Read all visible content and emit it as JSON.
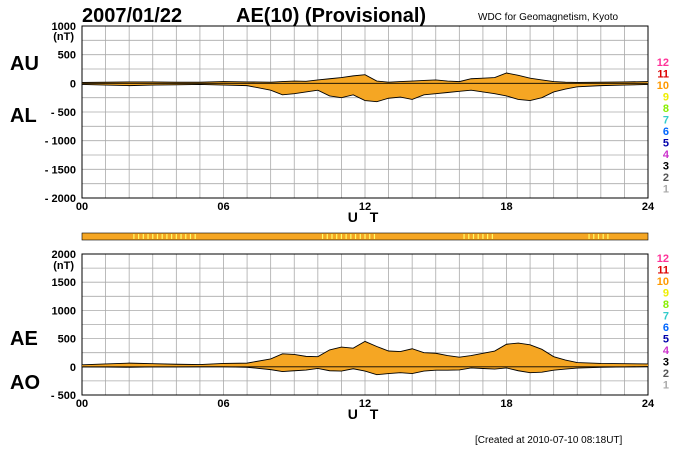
{
  "header": {
    "date": "2007/01/22",
    "title": "AE(10) (Provisional)",
    "institution": "WDC for Geomagnetism, Kyoto"
  },
  "footer": {
    "created": "[Created at 2010-07-10 08:18UT]"
  },
  "colors": {
    "fill": "#f5a623",
    "grid": "#aaaaaa",
    "highlight": "#ffff66"
  },
  "station_legend": [
    {
      "label": "12",
      "color": "#ff3399"
    },
    {
      "label": "11",
      "color": "#dd0000"
    },
    {
      "label": "10",
      "color": "#ff9900"
    },
    {
      "label": "9",
      "color": "#eeee00"
    },
    {
      "label": "8",
      "color": "#88ee00"
    },
    {
      "label": "7",
      "color": "#33cccc"
    },
    {
      "label": "6",
      "color": "#0066ff"
    },
    {
      "label": "5",
      "color": "#0000aa"
    },
    {
      "label": "4",
      "color": "#cc33cc"
    },
    {
      "label": "3",
      "color": "#000000"
    },
    {
      "label": "2",
      "color": "#555555"
    },
    {
      "label": "1",
      "color": "#aaaaaa"
    }
  ],
  "station_bar": {
    "highlight_ranges_ut": [
      [
        2.2,
        5.0
      ],
      [
        10.2,
        12.5
      ],
      [
        16.2,
        17.4
      ],
      [
        21.5,
        22.3
      ]
    ]
  },
  "chart_data": [
    {
      "type": "area",
      "panel": "AU/AL",
      "labels_upper": "AU",
      "labels_lower": "AL",
      "unit": "(nT)",
      "xlabel": "U T",
      "xlim": [
        0,
        24
      ],
      "ylim": [
        -2000,
        1000
      ],
      "y_ticks": [
        1000,
        500,
        0,
        -500,
        -1000,
        -1500,
        -2000
      ],
      "y_tick_labels": [
        "1000",
        "500",
        "0",
        "- 500",
        "- 1000",
        "- 1500",
        "- 2000"
      ],
      "x_ticks": [
        0,
        6,
        12,
        18,
        24
      ],
      "x_tick_labels": [
        "00",
        "06",
        "12",
        "18",
        "24"
      ],
      "grid": true,
      "series": [
        {
          "x": [
            0,
            1,
            2,
            3,
            4,
            5,
            6,
            7,
            8,
            8.5,
            9,
            9.5,
            10,
            10.5,
            11,
            11.5,
            12,
            12.5,
            13,
            13.5,
            14,
            14.5,
            15,
            15.5,
            16,
            16.5,
            17,
            17.5,
            18,
            18.5,
            19,
            19.5,
            20,
            20.5,
            21,
            22,
            23,
            24
          ],
          "values": [
            15,
            20,
            25,
            25,
            20,
            20,
            30,
            25,
            20,
            30,
            40,
            35,
            60,
            80,
            100,
            130,
            150,
            40,
            20,
            30,
            40,
            50,
            60,
            40,
            30,
            80,
            90,
            100,
            180,
            140,
            90,
            60,
            30,
            20,
            15,
            20,
            25,
            30
          ]
        },
        {
          "x": [
            0,
            1,
            2,
            3,
            4,
            5,
            6,
            7,
            8,
            8.5,
            9,
            9.5,
            10,
            10.5,
            11,
            11.5,
            12,
            12.5,
            13,
            13.5,
            14,
            14.5,
            15,
            15.5,
            16,
            16.5,
            17,
            17.5,
            18,
            18.5,
            19,
            19.5,
            20,
            20.5,
            21,
            22,
            23,
            24
          ],
          "values": [
            -20,
            -30,
            -40,
            -30,
            -25,
            -20,
            -30,
            -40,
            -120,
            -200,
            -180,
            -150,
            -120,
            -220,
            -250,
            -200,
            -300,
            -320,
            -260,
            -240,
            -280,
            -200,
            -180,
            -160,
            -140,
            -120,
            -150,
            -180,
            -220,
            -280,
            -300,
            -250,
            -150,
            -100,
            -60,
            -40,
            -30,
            -20
          ]
        }
      ]
    },
    {
      "type": "area",
      "panel": "AE/AO",
      "labels_upper": "AE",
      "labels_lower": "AO",
      "unit": "(nT)",
      "xlabel": "U T",
      "xlim": [
        0,
        24
      ],
      "ylim": [
        -500,
        2000
      ],
      "y_ticks": [
        2000,
        1500,
        1000,
        500,
        0,
        -500
      ],
      "y_tick_labels": [
        "2000",
        "1500",
        "1000",
        "500",
        "0",
        "- 500"
      ],
      "x_ticks": [
        0,
        6,
        12,
        18,
        24
      ],
      "x_tick_labels": [
        "00",
        "06",
        "12",
        "18",
        "24"
      ],
      "grid": true,
      "series": [
        {
          "x": [
            0,
            1,
            2,
            3,
            4,
            5,
            6,
            7,
            8,
            8.5,
            9,
            9.5,
            10,
            10.5,
            11,
            11.5,
            12,
            12.5,
            13,
            13.5,
            14,
            14.5,
            15,
            15.5,
            16,
            16.5,
            17,
            17.5,
            18,
            18.5,
            19,
            19.5,
            20,
            20.5,
            21,
            22,
            23,
            24
          ],
          "values": [
            35,
            50,
            65,
            55,
            45,
            40,
            60,
            65,
            140,
            230,
            220,
            185,
            180,
            300,
            350,
            330,
            450,
            360,
            280,
            270,
            320,
            250,
            240,
            200,
            170,
            200,
            240,
            280,
            400,
            420,
            390,
            310,
            180,
            120,
            75,
            60,
            55,
            50
          ]
        },
        {
          "x": [
            0,
            1,
            2,
            3,
            4,
            5,
            6,
            7,
            8,
            8.5,
            9,
            9.5,
            10,
            10.5,
            11,
            11.5,
            12,
            12.5,
            13,
            13.5,
            14,
            14.5,
            15,
            15.5,
            16,
            16.5,
            17,
            17.5,
            18,
            18.5,
            19,
            19.5,
            20,
            20.5,
            21,
            22,
            23,
            24
          ],
          "values": [
            -3,
            -5,
            -8,
            -3,
            -3,
            0,
            0,
            -8,
            -50,
            -85,
            -70,
            -58,
            -30,
            -70,
            -75,
            -35,
            -75,
            -140,
            -120,
            -105,
            -120,
            -75,
            -60,
            -60,
            -55,
            -20,
            -30,
            -40,
            -20,
            -70,
            -105,
            -95,
            -60,
            -40,
            -23,
            -10,
            -3,
            5
          ]
        }
      ]
    }
  ]
}
